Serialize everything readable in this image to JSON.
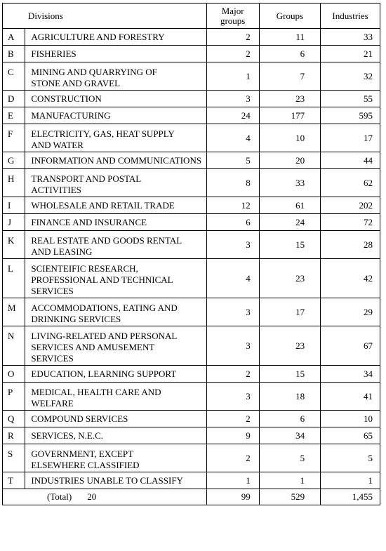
{
  "table": {
    "headers": {
      "divisions": "Divisions",
      "major_groups_line1": "Major",
      "major_groups_line2": "groups",
      "groups": "Groups",
      "industries": "Industries"
    },
    "rows": [
      {
        "code": "A",
        "name_lines": [
          "AGRICULTURE AND FORESTRY"
        ],
        "major_groups": "2",
        "groups": "11",
        "industries": "33"
      },
      {
        "code": "B",
        "name_lines": [
          "FISHERIES"
        ],
        "major_groups": "2",
        "groups": "6",
        "industries": "21"
      },
      {
        "code": "C",
        "name_lines": [
          "MINING AND QUARRYING OF",
          "STONE AND GRAVEL"
        ],
        "major_groups": "1",
        "groups": "7",
        "industries": "32"
      },
      {
        "code": "D",
        "name_lines": [
          "CONSTRUCTION"
        ],
        "major_groups": "3",
        "groups": "23",
        "industries": "55"
      },
      {
        "code": "E",
        "name_lines": [
          "MANUFACTURING"
        ],
        "major_groups": "24",
        "groups": "177",
        "industries": "595"
      },
      {
        "code": "F",
        "name_lines": [
          "ELECTRICITY, GAS, HEAT SUPPLY",
          "AND WATER"
        ],
        "major_groups": "4",
        "groups": "10",
        "industries": "17"
      },
      {
        "code": "G",
        "name_lines": [
          "INFORMATION AND COMMUNICATIONS"
        ],
        "major_groups": "5",
        "groups": "20",
        "industries": "44"
      },
      {
        "code": "H",
        "name_lines": [
          "TRANSPORT AND POSTAL",
          "ACTIVITIES"
        ],
        "major_groups": "8",
        "groups": "33",
        "industries": "62"
      },
      {
        "code": "I",
        "name_lines": [
          "WHOLESALE AND RETAIL TRADE"
        ],
        "major_groups": "12",
        "groups": "61",
        "industries": "202"
      },
      {
        "code": "J",
        "name_lines": [
          "FINANCE AND INSURANCE"
        ],
        "major_groups": "6",
        "groups": "24",
        "industries": "72"
      },
      {
        "code": "K",
        "name_lines": [
          "REAL ESTATE AND GOODS RENTAL",
          "AND LEASING"
        ],
        "major_groups": "3",
        "groups": "15",
        "industries": "28"
      },
      {
        "code": "L",
        "name_lines": [
          "SCIENTEIFIC RESEARCH,",
          "PROFESSIONAL AND TECHNICAL",
          "SERVICES"
        ],
        "major_groups": "4",
        "groups": "23",
        "industries": "42"
      },
      {
        "code": "M",
        "name_lines": [
          "ACCOMMODATIONS, EATING AND",
          "DRINKING SERVICES"
        ],
        "major_groups": "3",
        "groups": "17",
        "industries": "29"
      },
      {
        "code": "N",
        "name_lines": [
          "LIVING-RELATED AND PERSONAL",
          "SERVICES AND AMUSEMENT",
          "SERVICES"
        ],
        "major_groups": "3",
        "groups": "23",
        "industries": "67"
      },
      {
        "code": "O",
        "name_lines": [
          "EDUCATION, LEARNING SUPPORT"
        ],
        "major_groups": "2",
        "groups": "15",
        "industries": "34"
      },
      {
        "code": "P",
        "name_lines": [
          "MEDICAL, HEALTH CARE AND",
          "WELFARE"
        ],
        "major_groups": "3",
        "groups": "18",
        "industries": "41"
      },
      {
        "code": "Q",
        "name_lines": [
          "COMPOUND SERVICES"
        ],
        "major_groups": "2",
        "groups": "6",
        "industries": "10"
      },
      {
        "code": "R",
        "name_lines": [
          "SERVICES, N.E.C."
        ],
        "major_groups": "9",
        "groups": "34",
        "industries": "65"
      },
      {
        "code": "S",
        "name_lines": [
          "GOVERNMENT, EXCEPT",
          "ELSEWHERE CLASSIFIED"
        ],
        "major_groups": "2",
        "groups": "5",
        "industries": "5"
      },
      {
        "code": "T",
        "name_lines": [
          "INDUSTRIES UNABLE TO CLASSIFY"
        ],
        "major_groups": "1",
        "groups": "1",
        "industries": "1"
      }
    ],
    "total": {
      "label": "(Total)",
      "divisions": "20",
      "major_groups": "99",
      "groups": "529",
      "industries": "1,455"
    }
  }
}
